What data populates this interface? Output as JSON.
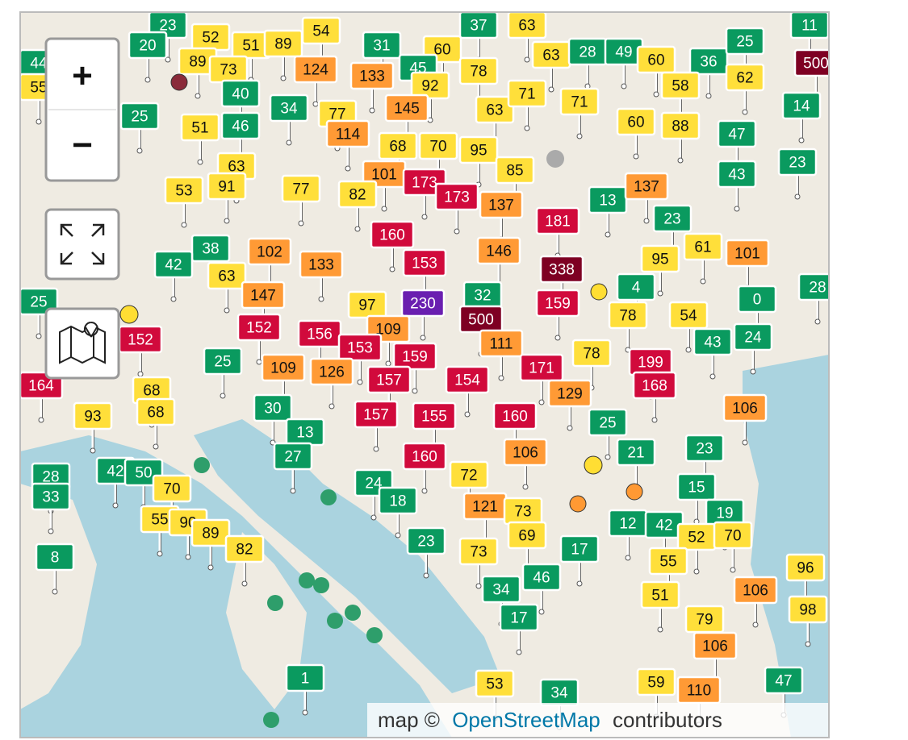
{
  "controls": {
    "zoom_in": "+",
    "zoom_out": "−"
  },
  "attribution": {
    "prefix": "map ©",
    "link": "OpenStreetMap",
    "suffix": "contributors"
  },
  "markers": [
    23,
    20,
    52,
    51,
    89,
    54,
    31,
    60,
    37,
    63,
    63,
    28,
    49,
    60,
    36,
    25,
    11,
    500,
    44,
    55,
    89,
    73,
    124,
    133,
    45,
    92,
    78,
    58,
    62,
    40,
    34,
    145,
    63,
    71,
    71,
    14,
    25,
    51,
    46,
    77,
    114,
    60,
    88,
    47,
    68,
    70,
    95,
    63,
    101,
    85,
    43,
    23,
    53,
    91,
    77,
    82,
    173,
    173,
    137,
    13,
    137,
    23,
    181,
    38,
    42,
    102,
    133,
    160,
    153,
    146,
    95,
    61,
    101,
    338,
    63,
    147,
    32,
    230,
    97,
    159,
    4,
    0,
    28,
    25,
    152,
    152,
    156,
    109,
    500,
    78,
    54,
    43,
    24,
    25,
    153,
    159,
    111,
    78,
    199,
    109,
    126,
    164,
    68,
    157,
    154,
    171,
    168,
    129,
    93,
    68,
    30,
    157,
    155,
    160,
    25,
    106,
    13,
    27,
    160,
    106,
    21,
    23,
    28,
    33,
    42,
    50,
    70,
    72,
    24,
    18,
    15,
    121,
    73,
    19,
    55,
    90,
    89,
    12,
    42,
    52,
    70,
    69,
    82,
    8,
    23,
    73,
    17,
    55,
    96,
    34,
    46,
    106,
    51,
    98,
    17,
    79,
    106,
    1,
    47,
    53,
    34,
    59,
    110
  ]
}
